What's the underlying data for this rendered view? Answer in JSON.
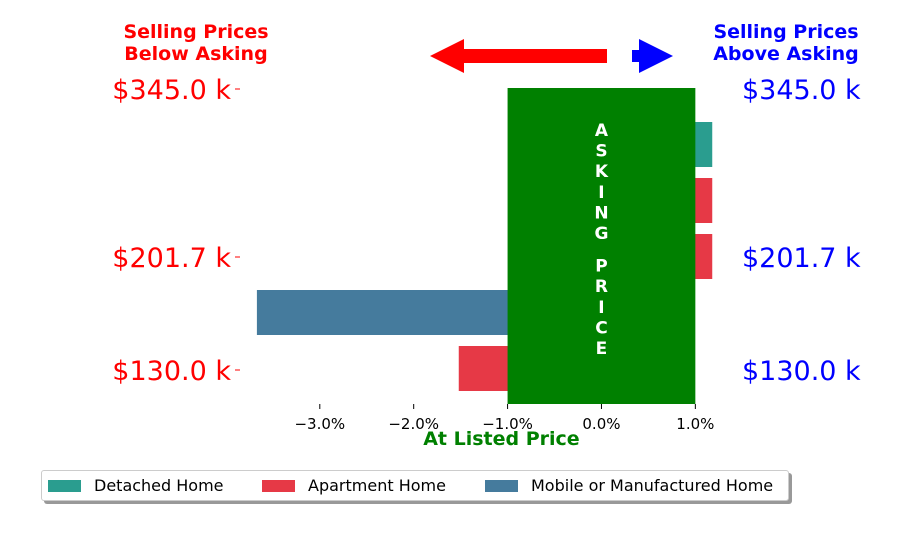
{
  "chart_data": {
    "type": "bar",
    "orientation": "horizontal",
    "title": "",
    "xlabel": "At Listed Price",
    "xlim": [
      -0.0385,
      0.0122
    ],
    "x_ticks": [
      -0.03,
      -0.02,
      -0.01,
      0.0,
      0.01
    ],
    "x_tick_labels": [
      "−3.0%",
      "−2.0%",
      "−1.0%",
      "0.0%",
      "1.0%"
    ],
    "y_tick_labels": [
      "$345.0 k",
      "$201.7 k",
      "$130.0 k"
    ],
    "header_left": [
      "Selling Prices",
      "Below Asking"
    ],
    "header_right": [
      "Selling Prices",
      "Above Asking"
    ],
    "asking_band": {
      "from": -0.01,
      "to": 0.01,
      "label": "ASKING PRICE",
      "color": "#008000"
    },
    "bars": [
      {
        "series": "Detached Home",
        "value": 0.0118,
        "row": 0
      },
      {
        "series": "Apartment Home",
        "value": 0.0118,
        "row": 1
      },
      {
        "series": "Apartment Home",
        "value": 0.0118,
        "row": 2
      },
      {
        "series": "Mobile or Manufactured Home",
        "value": -0.0367,
        "row": 3
      },
      {
        "series": "Apartment Home",
        "value": -0.0152,
        "row": 4
      }
    ],
    "series": [
      {
        "name": "Detached Home",
        "color": "#2a9d8f"
      },
      {
        "name": "Apartment Home",
        "color": "#e63946"
      },
      {
        "name": "Mobile or Manufactured Home",
        "color": "#457b9d"
      }
    ],
    "legend_placement": "bottom",
    "colors": {
      "left_labels": "#ff0000",
      "right_labels": "#0000ff",
      "xlabel": "#008000"
    }
  }
}
